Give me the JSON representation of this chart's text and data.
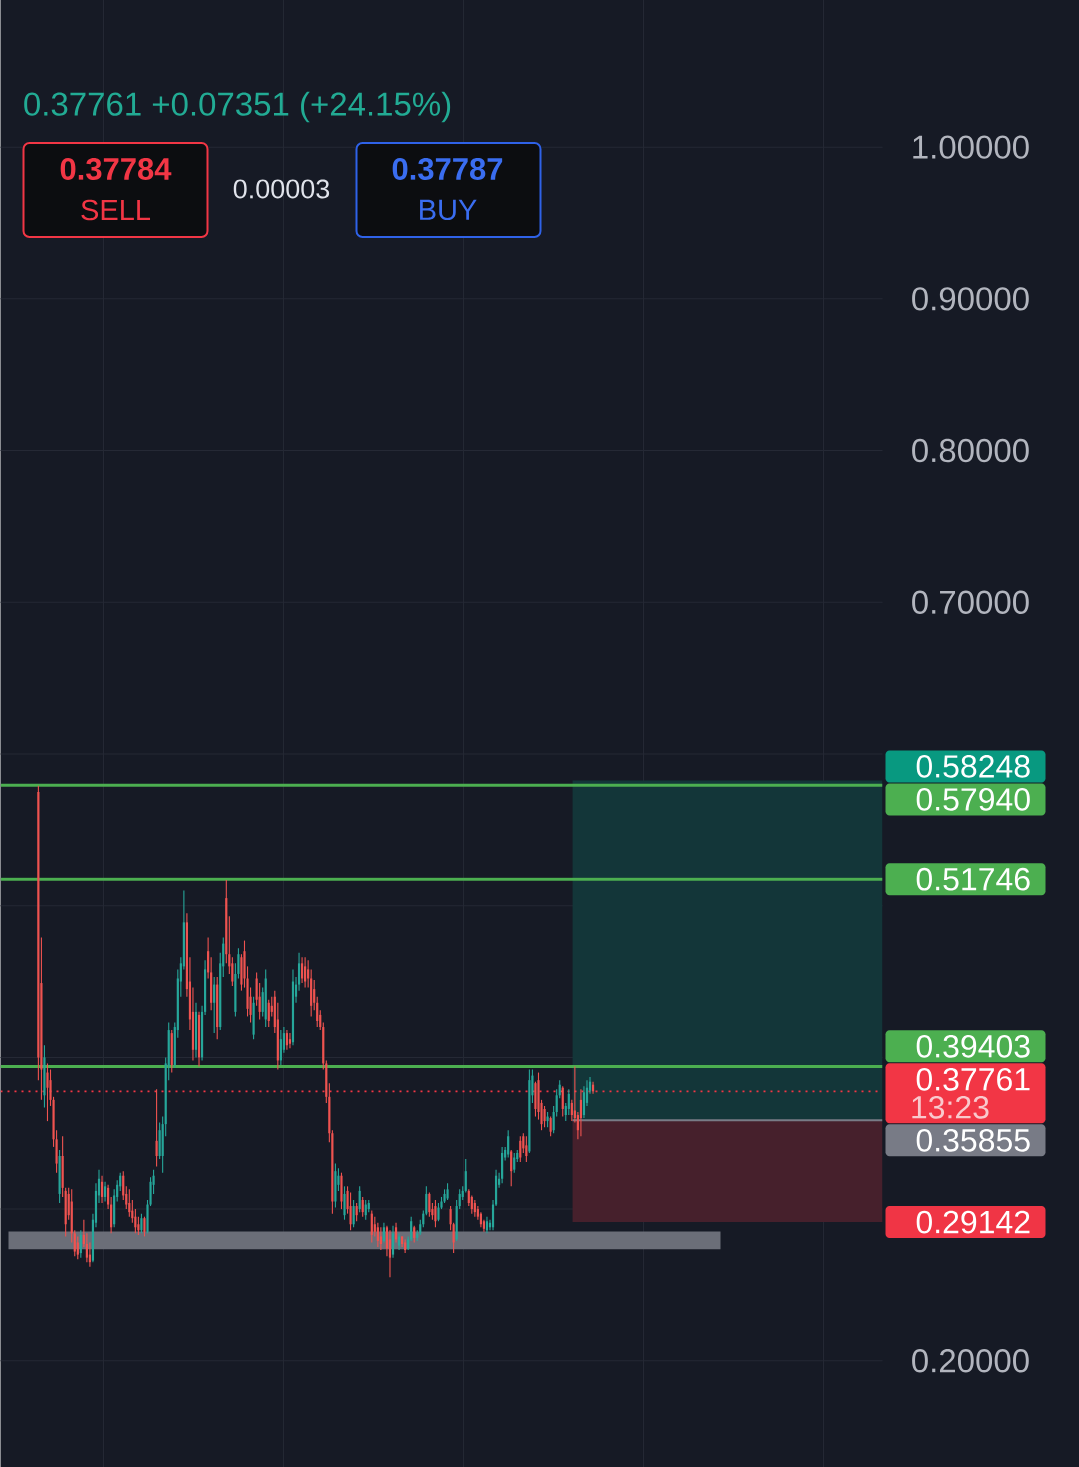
{
  "chart_data": {
    "type": "candlestick",
    "subtitle": "0.37761 +0.07351 (+24.15%)",
    "annotations": [
      "0.37784",
      "SELL",
      "0.00003",
      "0.37787",
      "BUY",
      "13:23"
    ],
    "categories": [
      null,
      null,
      null,
      null,
      null,
      null,
      null,
      null,
      null,
      null,
      null,
      null,
      null,
      null,
      null,
      null,
      null,
      null,
      null,
      null,
      null,
      null,
      null,
      null,
      null,
      null,
      null,
      null,
      null,
      null,
      null,
      null,
      null,
      null,
      null,
      null,
      null,
      null,
      null,
      null,
      null,
      null,
      null,
      null,
      null,
      null,
      null,
      null,
      null,
      null,
      null,
      null,
      null,
      null,
      null,
      null,
      null,
      null,
      null,
      null,
      null,
      null,
      null,
      null,
      null,
      null,
      null,
      null,
      null,
      null,
      null,
      null,
      null,
      null,
      null,
      null,
      null,
      null,
      null,
      null,
      null,
      null,
      null,
      null,
      null,
      null,
      null,
      null,
      null,
      null,
      null,
      null,
      null,
      null,
      null,
      null,
      null,
      null,
      null,
      null,
      null,
      null,
      null,
      null,
      null,
      null,
      null,
      null,
      null,
      null,
      null,
      null,
      null,
      null,
      null,
      null,
      null,
      null,
      null,
      null,
      null,
      null,
      null,
      null,
      null,
      null,
      null,
      null,
      null,
      null,
      null,
      null,
      null,
      null,
      null,
      null,
      null,
      null,
      null,
      null,
      null,
      null,
      null,
      null,
      null,
      null,
      null,
      null,
      null,
      null,
      null,
      null,
      null,
      null,
      null,
      null,
      null,
      null,
      null,
      null,
      null,
      null,
      null,
      null,
      null,
      null,
      null,
      null,
      null,
      null,
      null,
      null,
      null,
      null,
      null,
      null,
      null,
      null,
      null,
      null,
      null,
      null,
      null,
      null,
      null,
      null,
      null,
      null,
      null,
      null,
      null,
      null,
      null,
      null,
      null,
      null,
      null,
      null,
      null,
      null,
      null,
      null,
      null,
      null,
      null,
      null,
      null,
      null,
      null,
      null,
      null,
      null,
      null,
      null,
      null,
      null,
      null,
      null,
      null,
      null,
      null,
      null,
      null,
      null,
      null,
      null,
      null,
      null,
      null,
      null,
      null,
      null,
      null,
      null,
      null,
      null,
      null,
      null,
      null,
      null,
      null,
      null,
      null,
      null,
      null,
      null,
      null,
      null,
      null,
      null,
      null,
      null,
      null,
      null,
      null,
      null,
      null,
      null,
      null,
      null,
      null,
      null,
      null,
      null,
      null,
      null,
      null,
      null,
      null,
      null,
      null,
      null,
      null,
      null,
      null,
      null,
      null,
      null,
      null,
      null,
      null,
      null,
      null,
      null,
      null,
      null,
      null,
      null,
      null,
      null,
      null
    ],
    "ohlc": [
      null,
      null,
      null,
      null,
      null,
      null,
      null,
      null,
      null,
      null,
      null,
      null,
      [
        0.575,
        0.579,
        0.385,
        0.4
      ],
      [
        0.449,
        0.479,
        0.372,
        0.392
      ],
      [
        0.375,
        0.408,
        0.367,
        0.4
      ],
      [
        0.39,
        0.396,
        0.358,
        0.38
      ],
      [
        0.385,
        0.392,
        0.368,
        0.372
      ],
      [
        0.372,
        0.374,
        0.341,
        0.346
      ],
      [
        0.346,
        0.352,
        0.324,
        0.33
      ],
      [
        0.31,
        0.339,
        0.304,
        0.335
      ],
      [
        0.335,
        0.348,
        0.308,
        0.314
      ],
      [
        0.312,
        0.314,
        0.282,
        0.29
      ],
      [
        0.31,
        0.314,
        0.293,
        0.296
      ],
      [
        0.305,
        0.313,
        0.278,
        0.284
      ],
      [
        0.284,
        0.286,
        0.269,
        0.272
      ],
      [
        0.278,
        0.282,
        0.267,
        0.27
      ],
      [
        0.271,
        0.286,
        0.268,
        0.283
      ],
      [
        0.283,
        0.293,
        0.275,
        0.277
      ],
      [
        0.277,
        0.284,
        0.265,
        0.268
      ],
      [
        0.27,
        0.278,
        0.262,
        0.265
      ],
      [
        0.266,
        0.297,
        0.265,
        0.293
      ],
      [
        0.291,
        0.317,
        0.288,
        0.312
      ],
      [
        0.309,
        0.326,
        0.304,
        0.32
      ],
      [
        0.318,
        0.322,
        0.304,
        0.308
      ],
      [
        0.308,
        0.318,
        0.305,
        0.315
      ],
      [
        0.314,
        0.316,
        0.3,
        0.303
      ],
      [
        0.303,
        0.308,
        0.284,
        0.288
      ],
      [
        0.29,
        0.313,
        0.288,
        0.309
      ],
      [
        0.308,
        0.319,
        0.305,
        0.316
      ],
      [
        0.315,
        0.324,
        0.312,
        0.322
      ],
      [
        0.322,
        0.325,
        0.306,
        0.309
      ],
      [
        0.31,
        0.315,
        0.3,
        0.303
      ],
      [
        0.304,
        0.313,
        0.295,
        0.298
      ],
      [
        0.299,
        0.306,
        0.291,
        0.294
      ],
      [
        0.295,
        0.3,
        0.284,
        0.288
      ],
      [
        0.29,
        0.295,
        0.283,
        0.286
      ],
      [
        0.286,
        0.297,
        0.284,
        0.294
      ],
      [
        0.294,
        0.295,
        0.282,
        0.285
      ],
      [
        0.285,
        0.306,
        0.284,
        0.303
      ],
      [
        0.303,
        0.321,
        0.302,
        0.318
      ],
      [
        0.316,
        0.326,
        0.31,
        0.322
      ],
      [
        0.345,
        0.379,
        0.328,
        0.335
      ],
      [
        0.335,
        0.357,
        0.333,
        0.352
      ],
      [
        0.335,
        0.361,
        0.324,
        0.356
      ],
      [
        0.356,
        0.4,
        0.348,
        0.396
      ],
      [
        0.394,
        0.423,
        0.385,
        0.418
      ],
      [
        0.416,
        0.418,
        0.39,
        0.395
      ],
      [
        0.395,
        0.423,
        0.393,
        0.42
      ],
      [
        0.418,
        0.458,
        0.413,
        0.452
      ],
      [
        0.45,
        0.466,
        0.44,
        0.462
      ],
      [
        0.46,
        0.51,
        0.458,
        0.489
      ],
      [
        0.489,
        0.495,
        0.44,
        0.445
      ],
      [
        0.45,
        0.466,
        0.418,
        0.425
      ],
      [
        0.43,
        0.446,
        0.398,
        0.405
      ],
      [
        0.405,
        0.436,
        0.4,
        0.43
      ],
      [
        0.428,
        0.43,
        0.394,
        0.4
      ],
      [
        0.4,
        0.434,
        0.398,
        0.43
      ],
      [
        0.43,
        0.464,
        0.428,
        0.458
      ],
      [
        0.47,
        0.479,
        0.452,
        0.456
      ],
      [
        0.456,
        0.466,
        0.431,
        0.436
      ],
      [
        0.436,
        0.453,
        0.416,
        0.448
      ],
      [
        0.448,
        0.453,
        0.412,
        0.42
      ],
      [
        0.42,
        0.469,
        0.418,
        0.462
      ],
      [
        0.46,
        0.479,
        0.453,
        0.475
      ],
      [
        0.505,
        0.517,
        0.462,
        0.468
      ],
      [
        0.468,
        0.493,
        0.455,
        0.46
      ],
      [
        0.462,
        0.466,
        0.447,
        0.45
      ],
      [
        0.43,
        0.462,
        0.427,
        0.455
      ],
      [
        0.455,
        0.472,
        0.452,
        0.468
      ],
      [
        0.466,
        0.468,
        0.444,
        0.448
      ],
      [
        0.47,
        0.477,
        0.446,
        0.452
      ],
      [
        0.452,
        0.46,
        0.427,
        0.432
      ],
      [
        0.44,
        0.446,
        0.423,
        0.428
      ],
      [
        0.415,
        0.44,
        0.412,
        0.436
      ],
      [
        0.452,
        0.456,
        0.434,
        0.438
      ],
      [
        0.44,
        0.449,
        0.425,
        0.43
      ],
      [
        0.43,
        0.446,
        0.427,
        0.443
      ],
      [
        0.425,
        0.458,
        0.42,
        0.452
      ],
      [
        0.436,
        0.438,
        0.42,
        0.424
      ],
      [
        0.434,
        0.44,
        0.427,
        0.43
      ],
      [
        0.44,
        0.444,
        0.416,
        0.42
      ],
      [
        0.425,
        0.436,
        0.392,
        0.398
      ],
      [
        0.398,
        0.418,
        0.395,
        0.412
      ],
      [
        0.405,
        0.42,
        0.403,
        0.416
      ],
      [
        0.416,
        0.418,
        0.405,
        0.408
      ],
      [
        0.412,
        0.416,
        0.406,
        0.409
      ],
      [
        0.41,
        0.458,
        0.408,
        0.45
      ],
      [
        0.44,
        0.453,
        0.436,
        0.448
      ],
      [
        0.448,
        0.469,
        0.444,
        0.462
      ],
      [
        0.462,
        0.466,
        0.449,
        0.452
      ],
      [
        0.46,
        0.466,
        0.446,
        0.45
      ],
      [
        0.458,
        0.464,
        0.446,
        0.452
      ],
      [
        0.452,
        0.458,
        0.427,
        0.434
      ],
      [
        0.445,
        0.451,
        0.431,
        0.436
      ],
      [
        0.436,
        0.44,
        0.42,
        0.424
      ],
      [
        0.428,
        0.431,
        0.418,
        0.42
      ],
      [
        0.42,
        0.423,
        0.392,
        0.396
      ],
      [
        0.396,
        0.398,
        0.37,
        0.374
      ],
      [
        0.374,
        0.383,
        0.344,
        0.35
      ],
      [
        0.35,
        0.352,
        0.297,
        0.305
      ],
      [
        0.305,
        0.33,
        0.301,
        0.325
      ],
      [
        0.316,
        0.327,
        0.312,
        0.322
      ],
      [
        0.322,
        0.324,
        0.3,
        0.305
      ],
      [
        0.296,
        0.315,
        0.293,
        0.31
      ],
      [
        0.312,
        0.315,
        0.297,
        0.3
      ],
      [
        0.302,
        0.311,
        0.286,
        0.29
      ],
      [
        0.29,
        0.306,
        0.288,
        0.302
      ],
      [
        0.302,
        0.304,
        0.292,
        0.296
      ],
      [
        0.3,
        0.315,
        0.298,
        0.312
      ],
      [
        0.306,
        0.308,
        0.295,
        0.298
      ],
      [
        0.296,
        0.306,
        0.293,
        0.303
      ],
      [
        0.3,
        0.306,
        0.298,
        0.304
      ],
      [
        0.297,
        0.299,
        0.278,
        0.283
      ],
      [
        0.29,
        0.295,
        0.282,
        0.285
      ],
      [
        0.288,
        0.291,
        0.275,
        0.279
      ],
      [
        0.282,
        0.288,
        0.273,
        0.277
      ],
      [
        0.279,
        0.291,
        0.278,
        0.288
      ],
      [
        0.288,
        0.289,
        0.269,
        0.274
      ],
      [
        0.28,
        0.286,
        0.255,
        0.268
      ],
      [
        0.27,
        0.289,
        0.268,
        0.284
      ],
      [
        0.288,
        0.291,
        0.278,
        0.28
      ],
      [
        0.276,
        0.284,
        0.273,
        0.282
      ],
      [
        0.282,
        0.282,
        0.275,
        0.277
      ],
      [
        0.278,
        0.28,
        0.271,
        0.273
      ],
      [
        0.274,
        0.282,
        0.273,
        0.28
      ],
      [
        0.28,
        0.295,
        0.279,
        0.292
      ],
      [
        0.288,
        0.289,
        0.278,
        0.281
      ],
      [
        0.281,
        0.286,
        0.279,
        0.284
      ],
      [
        0.284,
        0.293,
        0.283,
        0.29
      ],
      [
        0.29,
        0.299,
        0.288,
        0.297
      ],
      [
        0.297,
        0.315,
        0.296,
        0.31
      ],
      [
        0.31,
        0.311,
        0.295,
        0.298
      ],
      [
        0.3,
        0.304,
        0.293,
        0.296
      ],
      [
        0.302,
        0.306,
        0.288,
        0.292
      ],
      [
        0.293,
        0.304,
        0.292,
        0.301
      ],
      [
        0.301,
        0.308,
        0.3,
        0.305
      ],
      [
        0.305,
        0.313,
        0.304,
        0.31
      ],
      [
        0.307,
        0.317,
        0.306,
        0.313
      ],
      [
        0.3,
        0.302,
        0.286,
        0.29
      ],
      [
        0.29,
        0.291,
        0.271,
        0.278
      ],
      [
        0.28,
        0.306,
        0.279,
        0.302
      ],
      [
        0.302,
        0.313,
        0.3,
        0.31
      ],
      [
        0.308,
        0.315,
        0.306,
        0.312
      ],
      [
        0.312,
        0.333,
        0.311,
        0.325
      ],
      [
        0.312,
        0.313,
        0.302,
        0.304
      ],
      [
        0.308,
        0.309,
        0.297,
        0.3
      ],
      [
        0.304,
        0.306,
        0.295,
        0.298
      ],
      [
        0.3,
        0.302,
        0.293,
        0.295
      ],
      [
        0.297,
        0.298,
        0.288,
        0.29
      ],
      [
        0.292,
        0.293,
        0.285,
        0.287
      ],
      [
        0.286,
        0.295,
        0.284,
        0.292
      ],
      [
        0.288,
        0.293,
        0.286,
        0.291
      ],
      [
        0.288,
        0.306,
        0.286,
        0.303
      ],
      [
        0.303,
        0.326,
        0.302,
        0.322
      ],
      [
        0.316,
        0.324,
        0.314,
        0.32
      ],
      [
        0.32,
        0.341,
        0.317,
        0.337
      ],
      [
        0.334,
        0.341,
        0.332,
        0.339
      ],
      [
        0.336,
        0.352,
        0.334,
        0.348
      ],
      [
        0.338,
        0.339,
        0.315,
        0.325
      ],
      [
        0.326,
        0.337,
        0.324,
        0.334
      ],
      [
        0.333,
        0.339,
        0.331,
        0.337
      ],
      [
        0.345,
        0.348,
        0.331,
        0.334
      ],
      [
        0.348,
        0.35,
        0.337,
        0.34
      ],
      [
        0.342,
        0.348,
        0.331,
        0.335
      ],
      [
        0.338,
        0.392,
        0.337,
        0.385
      ],
      [
        0.375,
        0.392,
        0.37,
        0.388
      ],
      [
        0.383,
        0.384,
        0.361,
        0.366
      ],
      [
        0.385,
        0.39,
        0.359,
        0.364
      ],
      [
        0.37,
        0.372,
        0.352,
        0.356
      ],
      [
        0.366,
        0.368,
        0.354,
        0.358
      ],
      [
        0.358,
        0.364,
        0.354,
        0.361
      ],
      [
        0.36,
        0.361,
        0.348,
        0.351
      ],
      [
        0.352,
        0.368,
        0.35,
        0.364
      ],
      [
        0.364,
        0.379,
        0.361,
        0.375
      ],
      [
        0.375,
        0.385,
        0.373,
        0.382
      ],
      [
        0.38,
        0.381,
        0.361,
        0.366
      ],
      [
        0.362,
        0.37,
        0.358,
        0.368
      ],
      [
        0.366,
        0.379,
        0.362,
        0.376
      ],
      [
        0.37,
        0.372,
        0.358,
        0.362
      ],
      [
        0.365,
        0.394,
        0.357,
        0.36
      ],
      [
        0.362,
        0.364,
        0.346,
        0.352
      ],
      [
        0.372,
        0.379,
        0.348,
        0.36
      ],
      [
        0.362,
        0.381,
        0.36,
        0.377
      ],
      [
        0.37,
        0.385,
        0.368,
        0.38
      ],
      [
        0.378,
        0.387,
        0.376,
        0.384
      ],
      [
        0.382,
        0.384,
        0.376,
        0.37761
      ],
      null,
      null,
      null,
      null,
      null,
      null,
      null,
      null,
      null,
      null,
      null,
      null,
      null,
      null,
      null,
      null,
      null,
      null,
      null,
      null,
      null,
      null,
      null,
      null,
      null,
      null,
      null,
      null,
      null,
      null,
      null,
      null,
      null,
      null,
      null,
      null,
      null,
      null,
      null,
      null,
      null,
      null,
      null,
      null,
      null,
      null,
      null,
      null,
      null,
      null,
      null,
      null,
      null,
      null,
      null,
      null,
      null,
      null,
      null,
      null,
      null,
      null,
      null,
      null,
      null,
      null,
      null,
      null,
      null,
      null,
      null,
      null,
      null,
      null,
      null,
      null,
      null,
      null,
      null,
      null,
      null,
      null,
      null,
      null,
      null,
      null,
      null,
      null,
      null,
      null,
      null,
      null,
      null,
      null,
      null
    ],
    "colors": [
      null,
      null,
      null,
      null,
      null,
      null,
      null,
      null,
      null,
      null,
      null,
      null,
      "#ef5350",
      "#ef5350",
      "#26a69a",
      "#ef5350",
      "#ef5350",
      "#ef5350",
      "#ef5350",
      "#26a69a",
      "#ef5350",
      "#ef5350",
      "#ef5350",
      "#ef5350",
      "#ef5350",
      "#ef5350",
      "#26a69a",
      "#ef5350",
      "#ef5350",
      "#ef5350",
      "#26a69a",
      "#26a69a",
      "#26a69a",
      "#ef5350",
      "#26a69a",
      "#ef5350",
      "#ef5350",
      "#26a69a",
      "#26a69a",
      "#26a69a",
      "#ef5350",
      "#ef5350",
      "#ef5350",
      "#ef5350",
      "#ef5350",
      "#ef5350",
      "#26a69a",
      "#ef5350",
      "#26a69a",
      "#26a69a",
      "#26a69a",
      "#ef5350",
      "#26a69a",
      "#26a69a",
      "#26a69a",
      "#26a69a",
      "#ef5350",
      "#26a69a",
      "#26a69a",
      "#26a69a",
      "#26a69a",
      "#ef5350",
      "#ef5350",
      "#ef5350",
      "#26a69a",
      "#ef5350",
      "#26a69a",
      "#26a69a",
      "#ef5350",
      "#ef5350",
      "#26a69a",
      "#ef5350",
      "#26a69a",
      "#26a69a",
      "#ef5350",
      "#ef5350",
      "#ef5350",
      "#26a69a",
      "#26a69a",
      "#ef5350",
      "#ef5350",
      "#ef5350",
      "#ef5350",
      "#26a69a",
      "#ef5350",
      "#ef5350",
      "#26a69a",
      "#26a69a",
      "#ef5350",
      "#ef5350",
      "#ef5350",
      "#ef5350",
      "#26a69a",
      "#26a69a",
      "#ef5350",
      "#ef5350",
      "#26a69a",
      "#26a69a",
      "#26a69a",
      "#ef5350",
      "#ef5350",
      "#ef5350",
      "#ef5350",
      "#ef5350",
      "#ef5350",
      "#ef5350",
      "#ef5350",
      "#ef5350",
      "#ef5350",
      "#ef5350",
      "#26a69a",
      "#26a69a",
      "#ef5350",
      "#26a69a",
      "#ef5350",
      "#ef5350",
      "#26a69a",
      "#ef5350",
      "#26a69a",
      "#ef5350",
      "#26a69a",
      "#26a69a",
      "#ef5350",
      "#ef5350",
      "#ef5350",
      "#ef5350",
      "#26a69a",
      "#ef5350",
      "#ef5350",
      "#26a69a",
      "#ef5350",
      "#26a69a",
      "#ef5350",
      "#ef5350",
      "#26a69a",
      "#26a69a",
      "#ef5350",
      "#26a69a",
      "#26a69a",
      "#26a69a",
      "#26a69a",
      "#ef5350",
      "#ef5350",
      "#ef5350",
      "#26a69a",
      "#26a69a",
      "#26a69a",
      "#26a69a",
      "#ef5350",
      "#ef5350",
      "#26a69a",
      "#26a69a",
      "#26a69a",
      "#26a69a",
      "#ef5350",
      "#ef5350",
      "#ef5350",
      "#ef5350",
      "#ef5350",
      "#ef5350",
      "#26a69a",
      "#26a69a",
      "#26a69a",
      "#26a69a",
      "#26a69a",
      "#26a69a",
      "#26a69a",
      "#26a69a",
      "#ef5350",
      "#26a69a",
      "#26a69a",
      "#ef5350",
      "#ef5350",
      "#ef5350",
      "#26a69a",
      "#26a69a",
      "#ef5350",
      "#ef5350",
      "#ef5350",
      "#ef5350",
      "#26a69a",
      "#ef5350",
      "#26a69a",
      "#26a69a",
      "#26a69a",
      "#ef5350",
      "#26a69a",
      "#26a69a",
      "#ef5350",
      "#ef5350",
      "#ef5350",
      "#ef5350",
      "#26a69a",
      "#26a69a",
      "#26a69a",
      "#ef5350",
      null,
      null,
      null,
      null,
      null,
      null,
      null,
      null,
      null,
      null,
      null,
      null,
      null,
      null,
      null,
      null,
      null,
      null,
      null,
      null,
      null,
      null,
      null,
      null,
      null,
      null,
      null,
      null,
      null,
      null,
      null,
      null,
      null,
      null,
      null,
      null,
      null,
      null,
      null,
      null,
      null,
      null,
      null,
      null,
      null,
      null,
      null,
      null,
      null,
      null,
      null,
      null,
      null,
      null,
      null,
      null,
      null,
      null,
      null,
      null,
      null,
      null,
      null,
      null,
      null,
      null,
      null,
      null,
      null,
      null,
      null,
      null,
      null,
      null,
      null,
      null,
      null,
      null,
      null,
      null,
      null,
      null,
      null,
      null,
      null,
      null,
      null,
      null,
      null,
      null,
      null,
      null,
      null,
      null,
      null
    ],
    "ylim": [
      0.13,
      1.097
    ],
    "yticks": [
      {
        "value": 1,
        "label": "1.00000"
      },
      {
        "value": 0.9,
        "label": "0.90000"
      },
      {
        "value": 0.8,
        "label": "0.80000"
      },
      {
        "value": 0.7,
        "label": "0.70000"
      },
      {
        "value": 0.6,
        "label": null
      },
      {
        "value": 0.5,
        "label": null
      },
      {
        "value": 0.4,
        "label": null
      },
      {
        "value": 0.3,
        "label": null
      },
      {
        "value": 0.2,
        "label": "0.20000"
      }
    ],
    "ref_lines": [
      {
        "axis": "y",
        "value": 0.5794,
        "label": "0.57940",
        "color": "#4caf50"
      },
      {
        "axis": "y",
        "value": 0.51746,
        "label": "0.51746",
        "color": "#4caf50"
      },
      {
        "axis": "y",
        "value": 0.39403,
        "label": "0.39403",
        "color": "#4caf50"
      },
      {
        "axis": "y",
        "value": 0.37761,
        "label": "0.37761",
        "color": "#f23645",
        "line_style": "dotted"
      },
      {
        "axis": "y",
        "value": 0.35855,
        "label": "0.35855",
        "color": "#787b86"
      }
    ],
    "bands": [
      {
        "axis": "y",
        "from": 0.35855,
        "to": 0.58248,
        "label": "0.58248",
        "color": "#133639"
      },
      {
        "axis": "y",
        "from": 0.35855,
        "to": 0.29142,
        "label": "0.29142",
        "color": "#46202c"
      },
      {
        "axis": "y",
        "from": 0.2736,
        "to": 0.2852,
        "color": "#6b6e78"
      }
    ],
    "grid": true,
    "tick_labels": "y"
  }
}
